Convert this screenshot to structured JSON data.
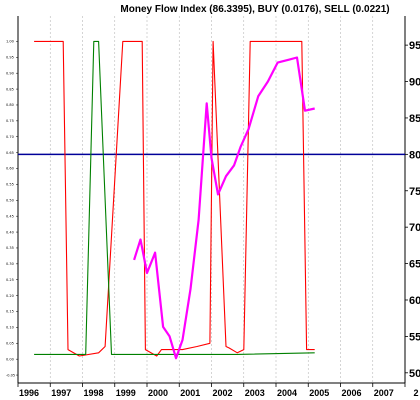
{
  "chart_data": {
    "type": "line",
    "title": "Money Flow Index (86.3395), BUY (0.0176), SELL (0.0221)",
    "x_ticks": [
      "1996",
      "1997",
      "1998",
      "1999",
      "2000",
      "2001",
      "2002",
      "2003",
      "2004",
      "2005",
      "2006",
      "2007",
      "2"
    ],
    "x_range": [
      1996,
      2008
    ],
    "left_axis": {
      "ticks": [
        "1.00",
        "0.95",
        "0.90",
        "0.85",
        "0.80",
        "0.75",
        "0.70",
        "0.65",
        "0.60",
        "0.55",
        "0.50",
        "0.45",
        "0.40",
        "0.35",
        "0.30",
        "0.25",
        "0.20",
        "0.15",
        "0.10",
        "0.05",
        "0.00",
        "-0.05"
      ],
      "range": [
        -0.075,
        1.08
      ]
    },
    "right_axis": {
      "ticks": [
        "95",
        "90",
        "85",
        "80",
        "75",
        "70",
        "65",
        "60",
        "55",
        "50"
      ],
      "range": [
        48.6,
        99.0
      ]
    },
    "grid": {
      "vertical": true,
      "horizontal": false
    },
    "reference_line": {
      "axis": "right",
      "value": 80,
      "color": "#000099"
    },
    "series": [
      {
        "axis": "left",
        "color": "#ff0000",
        "x": [
          1996.5,
          1997.4,
          1997.55,
          1997.9,
          1998.5,
          1998.7,
          1999.25,
          1999.35,
          1999.85,
          1999.95,
          2000.3,
          2000.45,
          2001.0,
          2001.1,
          2001.55,
          2001.95,
          2002.05,
          2002.45,
          2002.55,
          2002.8,
          2003.0,
          2003.2,
          2004.8,
          2004.95,
          2005.2
        ],
        "y": [
          1.0,
          1.0,
          0.03,
          0.01,
          0.02,
          0.04,
          1.0,
          1.0,
          1.0,
          0.03,
          0.01,
          0.03,
          0.03,
          0.03,
          0.04,
          0.05,
          1.0,
          0.04,
          0.035,
          0.02,
          0.03,
          1.0,
          1.0,
          0.03,
          0.03
        ]
      },
      {
        "axis": "left",
        "color": "#008000",
        "x": [
          1996.5,
          1997.8,
          1998.1,
          1998.35,
          1998.5,
          1998.9,
          1999.05,
          1999.3,
          2000.1,
          2002.8,
          2005.2
        ],
        "y": [
          0.015,
          0.015,
          0.015,
          1.0,
          1.0,
          0.015,
          0.015,
          0.015,
          0.015,
          0.015,
          0.02
        ]
      },
      {
        "axis": "right",
        "color": "#ff00ff",
        "x": [
          1999.6,
          1999.8,
          2000.0,
          2000.25,
          2000.5,
          2000.7,
          2000.9,
          2001.1,
          2001.35,
          2001.6,
          2001.85,
          2002.0,
          2002.2,
          2002.45,
          2002.7,
          2002.9,
          2003.15,
          2003.45,
          2003.75,
          2004.05,
          2004.4,
          2004.65,
          2004.9,
          2005.2
        ],
        "y": [
          65.5,
          68.3,
          63.7,
          66.5,
          56.3,
          55.0,
          52.0,
          54.5,
          61.5,
          71.0,
          87.0,
          79.5,
          74.5,
          77.0,
          78.5,
          81.0,
          83.5,
          88.0,
          90.0,
          92.6,
          93.0,
          93.3,
          86.0,
          86.3
        ]
      }
    ]
  }
}
